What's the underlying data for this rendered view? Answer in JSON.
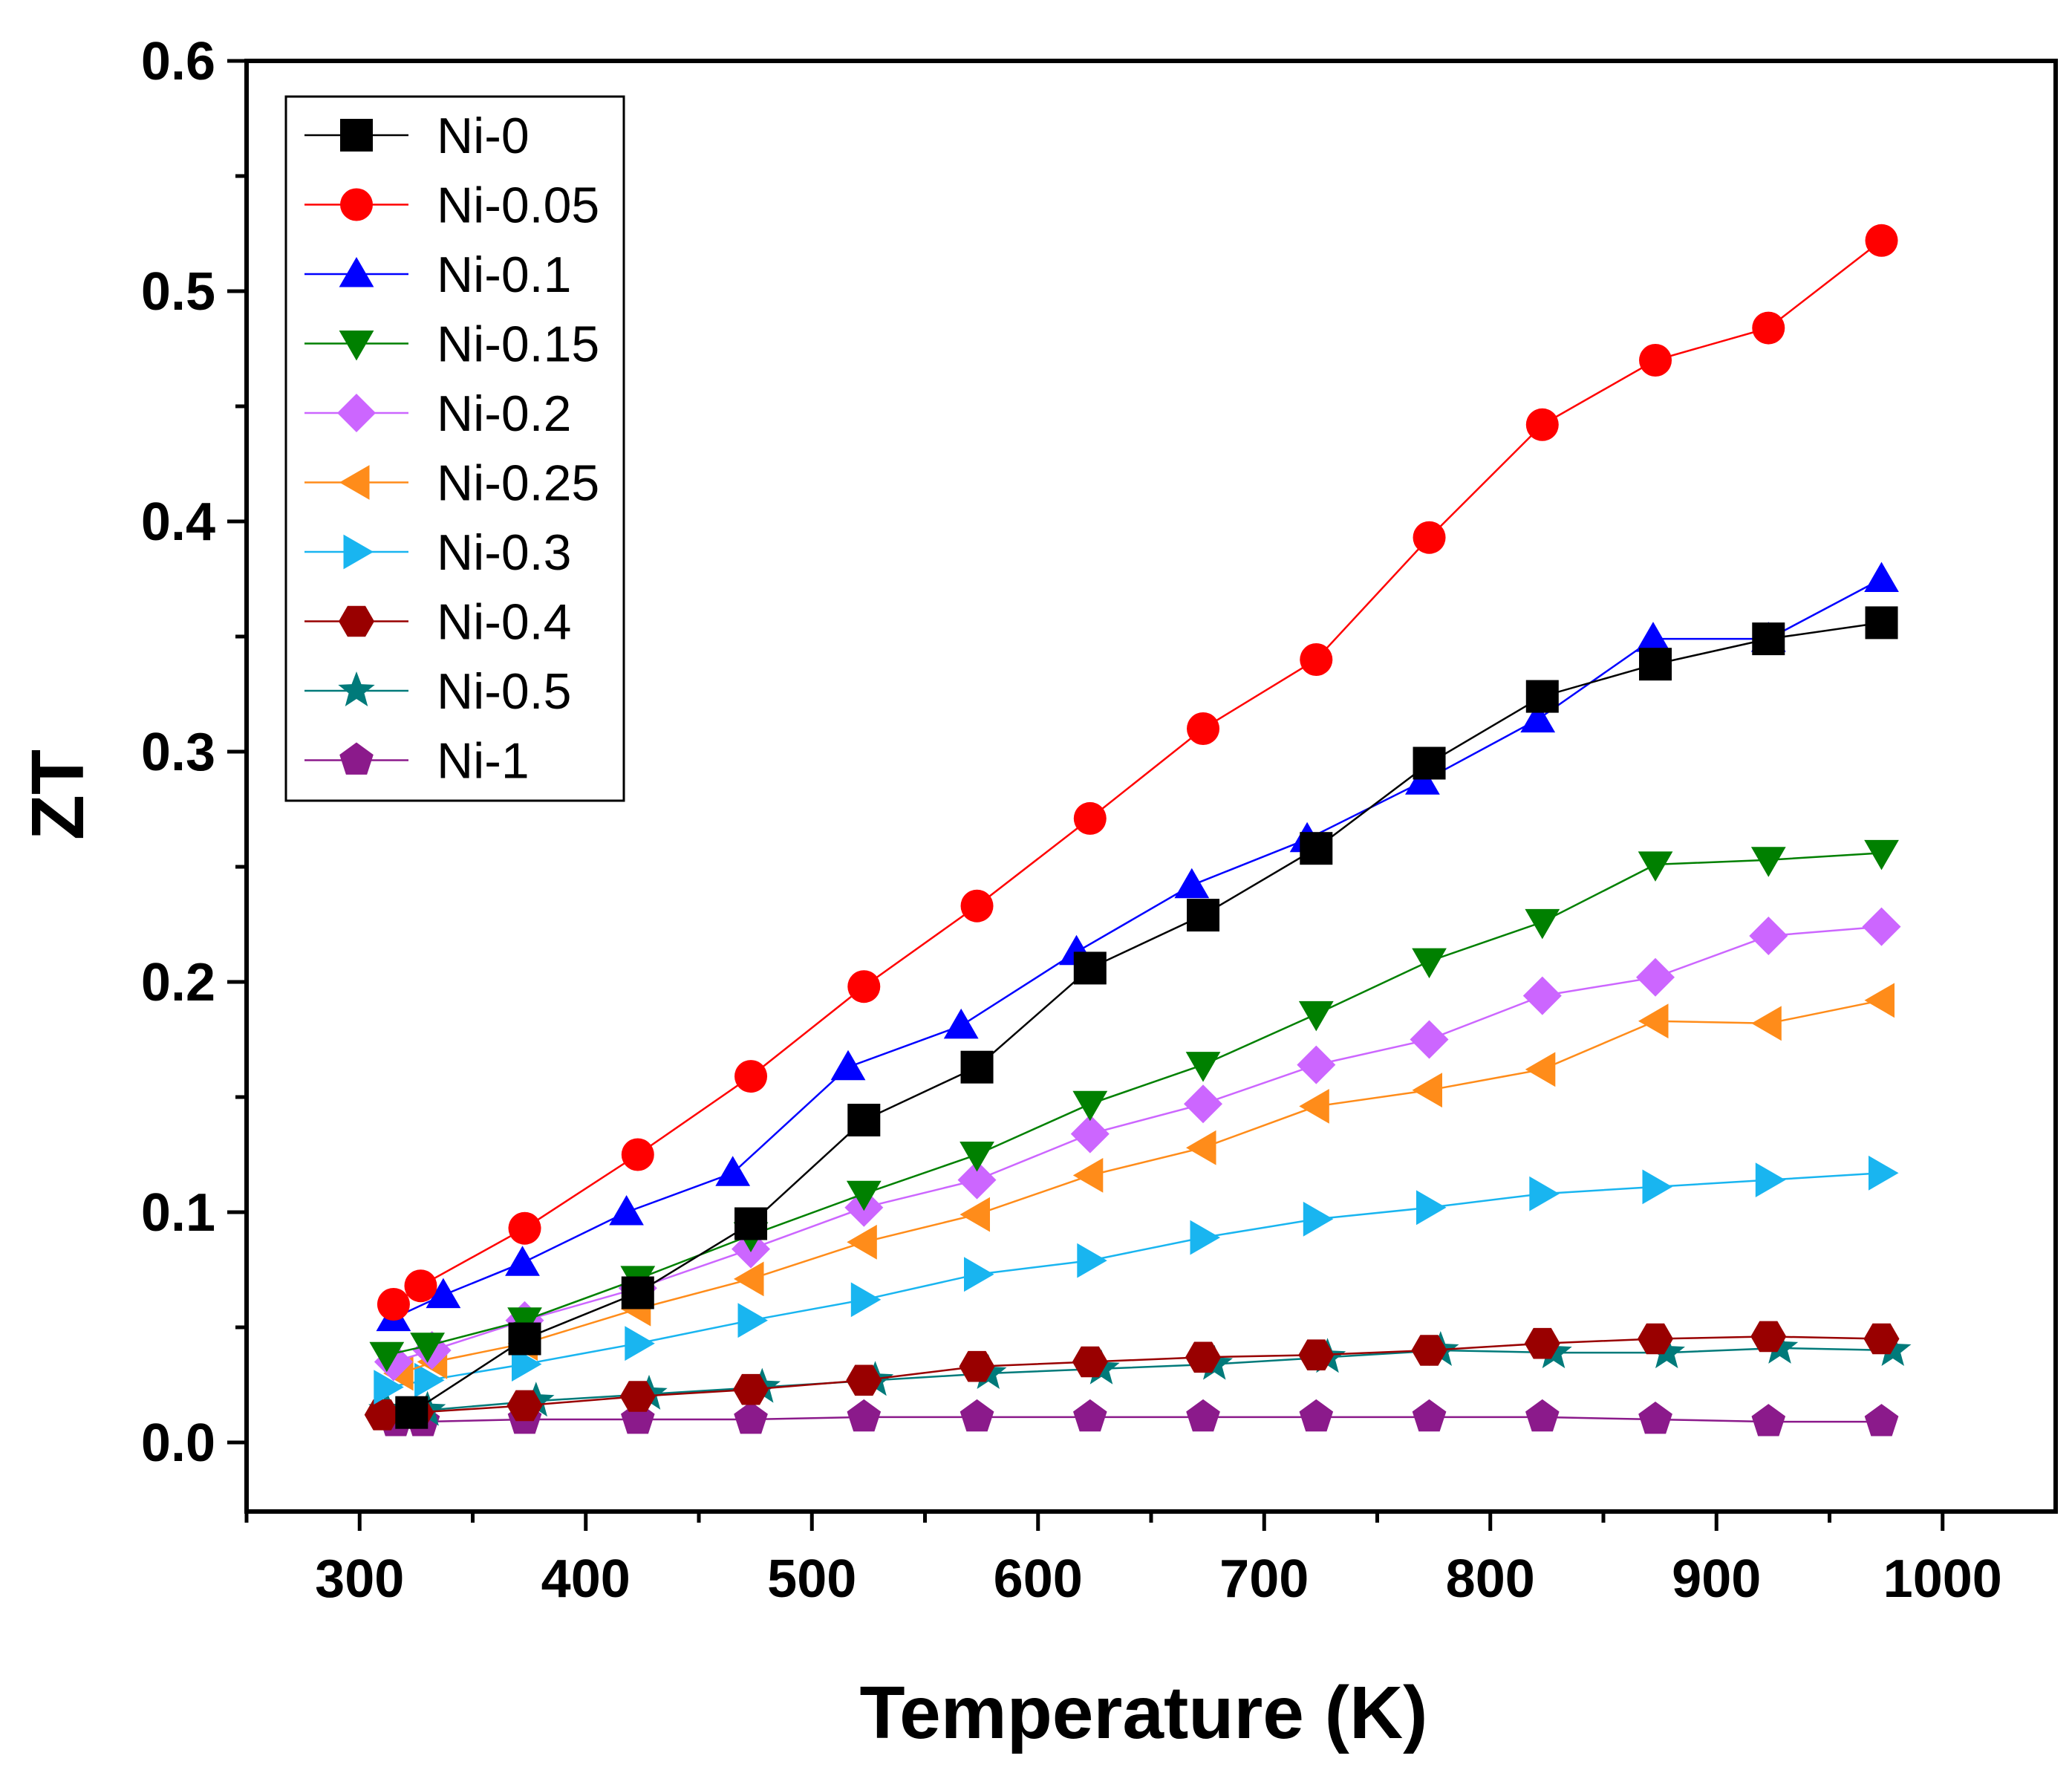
{
  "chart_data": {
    "type": "line",
    "title": "",
    "xlabel": "Temperature (K)",
    "ylabel": "ZT",
    "xlim": [
      250,
      1050
    ],
    "ylim": [
      -0.03,
      0.6
    ],
    "xticks": [
      300,
      400,
      500,
      600,
      700,
      800,
      900,
      1000
    ],
    "xtick_labels": [
      "300",
      "400",
      "500",
      "600",
      "700",
      "800",
      "900",
      "1000"
    ],
    "yticks": [
      0.0,
      0.1,
      0.2,
      0.3,
      0.4,
      0.5,
      0.6
    ],
    "ytick_labels": [
      "0.0",
      "0.1",
      "0.2",
      "0.3",
      "0.4",
      "0.5",
      "0.6"
    ],
    "grid": false,
    "legend_position": "top-left",
    "series": [
      {
        "name": "Ni-0",
        "color": "#000000",
        "marker": "square",
        "x": [
          323,
          373,
          423,
          473,
          523,
          573,
          623,
          673,
          723,
          773,
          823,
          873,
          923,
          973
        ],
        "y": [
          0.013,
          0.045,
          0.065,
          0.095,
          0.14,
          0.163,
          0.206,
          0.229,
          0.258,
          0.295,
          0.324,
          0.338,
          0.349,
          0.356
        ]
      },
      {
        "name": "Ni-0.05",
        "color": "#ff0000",
        "marker": "circle",
        "x": [
          315,
          327,
          373,
          423,
          473,
          523,
          573,
          623,
          673,
          723,
          773,
          823,
          873,
          923,
          973
        ],
        "y": [
          0.06,
          0.068,
          0.093,
          0.125,
          0.159,
          0.198,
          0.233,
          0.271,
          0.31,
          0.34,
          0.393,
          0.442,
          0.47,
          0.484,
          0.522
        ]
      },
      {
        "name": "Ni-0.1",
        "color": "#0000ff",
        "marker": "triangle-up",
        "x": [
          315,
          337,
          372,
          418,
          465,
          516,
          566,
          617,
          668,
          719,
          770,
          821,
          872,
          923,
          973
        ],
        "y": [
          0.054,
          0.064,
          0.078,
          0.1,
          0.117,
          0.163,
          0.181,
          0.213,
          0.242,
          0.262,
          0.287,
          0.314,
          0.349,
          0.349,
          0.375
        ]
      },
      {
        "name": "Ni-0.15",
        "color": "#008000",
        "marker": "triangle-down",
        "x": [
          312,
          330,
          373,
          423,
          473,
          523,
          573,
          623,
          673,
          723,
          773,
          823,
          873,
          923,
          973
        ],
        "y": [
          0.038,
          0.042,
          0.053,
          0.071,
          0.09,
          0.108,
          0.125,
          0.147,
          0.164,
          0.186,
          0.209,
          0.226,
          0.251,
          0.253,
          0.256
        ]
      },
      {
        "name": "Ni-0.2",
        "color": "#cc66ff",
        "marker": "diamond",
        "x": [
          315,
          332,
          373,
          423,
          473,
          523,
          573,
          623,
          673,
          723,
          773,
          823,
          873,
          923,
          973
        ],
        "y": [
          0.035,
          0.04,
          0.053,
          0.067,
          0.084,
          0.102,
          0.114,
          0.134,
          0.147,
          0.164,
          0.175,
          0.194,
          0.202,
          0.22,
          0.224
        ]
      },
      {
        "name": "Ni-0.25",
        "color": "#ff8c1a",
        "marker": "triangle-left",
        "x": [
          318,
          333,
          373,
          423,
          473,
          523,
          573,
          623,
          673,
          723,
          773,
          823,
          873,
          923,
          973
        ],
        "y": [
          0.03,
          0.035,
          0.043,
          0.058,
          0.071,
          0.087,
          0.099,
          0.116,
          0.128,
          0.146,
          0.153,
          0.162,
          0.183,
          0.182,
          0.192
        ]
      },
      {
        "name": "Ni-0.3",
        "color": "#19b5f0",
        "marker": "triangle-right",
        "x": [
          312,
          330,
          373,
          423,
          473,
          523,
          573,
          623,
          673,
          723,
          773,
          823,
          873,
          923,
          973
        ],
        "y": [
          0.024,
          0.027,
          0.034,
          0.043,
          0.053,
          0.062,
          0.073,
          0.079,
          0.089,
          0.097,
          0.102,
          0.108,
          0.111,
          0.114,
          0.117
        ]
      },
      {
        "name": "Ni-0.4",
        "color": "#990000",
        "marker": "hexagon",
        "x": [
          310,
          325,
          373,
          423,
          473,
          523,
          573,
          623,
          673,
          723,
          773,
          823,
          873,
          923,
          973
        ],
        "y": [
          0.012,
          0.013,
          0.016,
          0.02,
          0.023,
          0.027,
          0.033,
          0.035,
          0.037,
          0.038,
          0.04,
          0.043,
          0.045,
          0.046,
          0.045
        ]
      },
      {
        "name": "Ni-0.5",
        "color": "#007a7a",
        "marker": "star",
        "x": [
          312,
          330,
          378,
          428,
          478,
          528,
          578,
          628,
          678,
          728,
          778,
          828,
          878,
          928,
          978
        ],
        "y": [
          0.014,
          0.014,
          0.018,
          0.021,
          0.024,
          0.027,
          0.03,
          0.032,
          0.034,
          0.037,
          0.04,
          0.039,
          0.039,
          0.041,
          0.04
        ]
      },
      {
        "name": "Ni-1",
        "color": "#8b1a8b",
        "marker": "pentagon",
        "x": [
          316,
          328,
          373,
          423,
          473,
          523,
          573,
          623,
          673,
          723,
          773,
          823,
          873,
          923,
          973
        ],
        "y": [
          0.009,
          0.009,
          0.01,
          0.01,
          0.01,
          0.011,
          0.011,
          0.011,
          0.011,
          0.011,
          0.011,
          0.011,
          0.01,
          0.009,
          0.009
        ]
      }
    ]
  }
}
